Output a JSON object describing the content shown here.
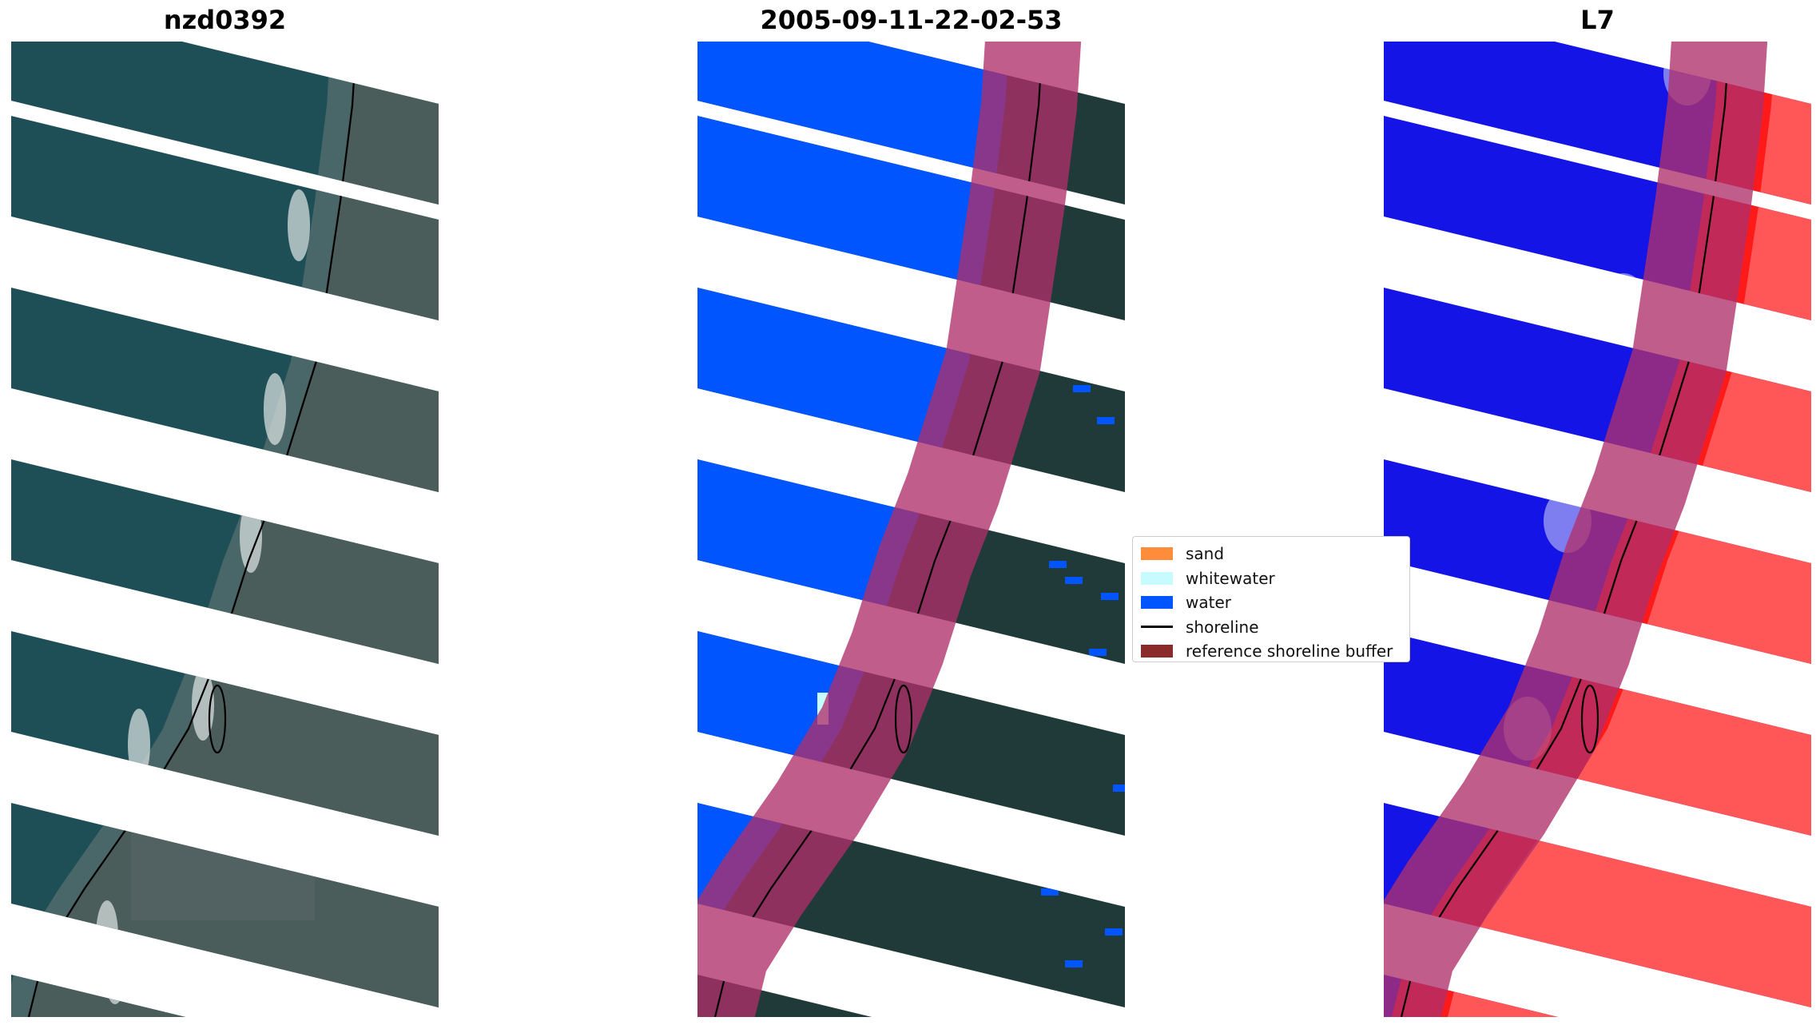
{
  "panels": [
    {
      "key": "rgb",
      "title": "nzd0392",
      "style": "rgb"
    },
    {
      "key": "classified",
      "title": "2005-09-11-22-02-53",
      "style": "classified"
    },
    {
      "key": "index",
      "title": "L7",
      "style": "index"
    }
  ],
  "legend": {
    "items": [
      {
        "label": "sand",
        "kind": "patch",
        "color": "#ff8c3a"
      },
      {
        "label": "whitewater",
        "kind": "patch",
        "color": "#c8fbff"
      },
      {
        "label": "water",
        "kind": "patch",
        "color": "#0055ff"
      },
      {
        "label": "shoreline",
        "kind": "line",
        "color": "#000000"
      },
      {
        "label": "reference shoreline buffer",
        "kind": "patch",
        "color": "#8b2a2a"
      }
    ]
  },
  "colors": {
    "water_class": "#0055ff",
    "buffer_overlay": "#b0306a",
    "index_water": "#1414e6",
    "index_land": "#ff1a1a",
    "land_dark": "#1f3a38",
    "ocean_rgb": "#1e4f57"
  }
}
